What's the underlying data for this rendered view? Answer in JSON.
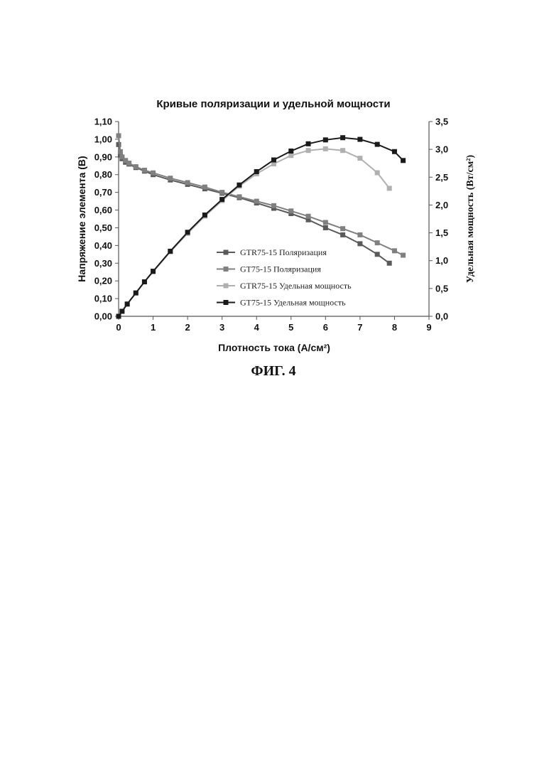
{
  "figure": {
    "caption": "ФИГ. 4"
  },
  "chart_data": {
    "type": "line",
    "title": "Кривые поляризации и удельной мощности",
    "xlabel": "Плотность тока (А/см²)",
    "ylabel": "Напряжение элемента (В)",
    "y2label": "Удельная мощность (Вт/см²)",
    "xlim": [
      0,
      9
    ],
    "ylim": [
      0,
      1.1
    ],
    "y2lim": [
      0,
      3.5
    ],
    "x_ticks": [
      "0",
      "1",
      "2",
      "3",
      "4",
      "5",
      "6",
      "7",
      "8",
      "9"
    ],
    "y_ticks": [
      "0,00",
      "0,10",
      "0,20",
      "0,30",
      "0,40",
      "0,50",
      "0,60",
      "0,70",
      "0,80",
      "0,90",
      "1,00",
      "1,10"
    ],
    "y2_ticks": [
      "0,0",
      "0,5",
      "1,0",
      "1,5",
      "2,0",
      "2,5",
      "3,0",
      "3,5"
    ],
    "grid": false,
    "legend_position": "lower-center",
    "series": [
      {
        "name": "GTR75-15 Поляризация",
        "axis": "left",
        "color": "#5a5a5a",
        "x": [
          0,
          0.05,
          0.1,
          0.2,
          0.3,
          0.5,
          0.75,
          1.0,
          1.5,
          2.0,
          2.5,
          3.0,
          3.5,
          4.0,
          4.5,
          5.0,
          5.5,
          6.0,
          6.5,
          7.0,
          7.5,
          7.85
        ],
        "y": [
          0.97,
          0.91,
          0.89,
          0.87,
          0.86,
          0.84,
          0.82,
          0.8,
          0.77,
          0.745,
          0.72,
          0.695,
          0.67,
          0.64,
          0.61,
          0.58,
          0.545,
          0.5,
          0.46,
          0.41,
          0.35,
          0.3
        ]
      },
      {
        "name": "GT75-15 Поляризация",
        "axis": "left",
        "color": "#808080",
        "x": [
          0,
          0.05,
          0.1,
          0.2,
          0.3,
          0.5,
          0.75,
          1.0,
          1.5,
          2.0,
          2.5,
          3.0,
          3.5,
          4.0,
          4.5,
          5.0,
          5.5,
          6.0,
          6.5,
          7.0,
          7.5,
          8.0,
          8.25
        ],
        "y": [
          1.02,
          0.93,
          0.9,
          0.88,
          0.865,
          0.845,
          0.825,
          0.81,
          0.78,
          0.755,
          0.73,
          0.7,
          0.675,
          0.65,
          0.625,
          0.595,
          0.565,
          0.53,
          0.495,
          0.46,
          0.415,
          0.37,
          0.345
        ]
      },
      {
        "name": "GTR75-15 Удельная мощность",
        "axis": "right",
        "color": "#b0b0b0",
        "x": [
          0,
          0.1,
          0.25,
          0.5,
          0.75,
          1.0,
          1.5,
          2.0,
          2.5,
          3.0,
          3.5,
          4.0,
          4.5,
          5.0,
          5.5,
          6.0,
          6.5,
          7.0,
          7.5,
          7.85
        ],
        "y": [
          0,
          0.09,
          0.22,
          0.42,
          0.62,
          0.8,
          1.16,
          1.49,
          1.8,
          2.08,
          2.34,
          2.56,
          2.74,
          2.89,
          2.98,
          3.01,
          2.98,
          2.84,
          2.58,
          2.3
        ]
      },
      {
        "name": "GT75-15 Удельная мощность",
        "axis": "right",
        "color": "#1a1a1a",
        "x": [
          0,
          0.1,
          0.25,
          0.5,
          0.75,
          1.0,
          1.5,
          2.0,
          2.5,
          3.0,
          3.5,
          4.0,
          4.5,
          5.0,
          5.5,
          6.0,
          6.5,
          7.0,
          7.5,
          8.0,
          8.25
        ],
        "y": [
          0,
          0.09,
          0.22,
          0.42,
          0.62,
          0.81,
          1.17,
          1.51,
          1.82,
          2.1,
          2.36,
          2.6,
          2.81,
          2.97,
          3.1,
          3.17,
          3.21,
          3.18,
          3.09,
          2.96,
          2.8
        ]
      }
    ]
  }
}
